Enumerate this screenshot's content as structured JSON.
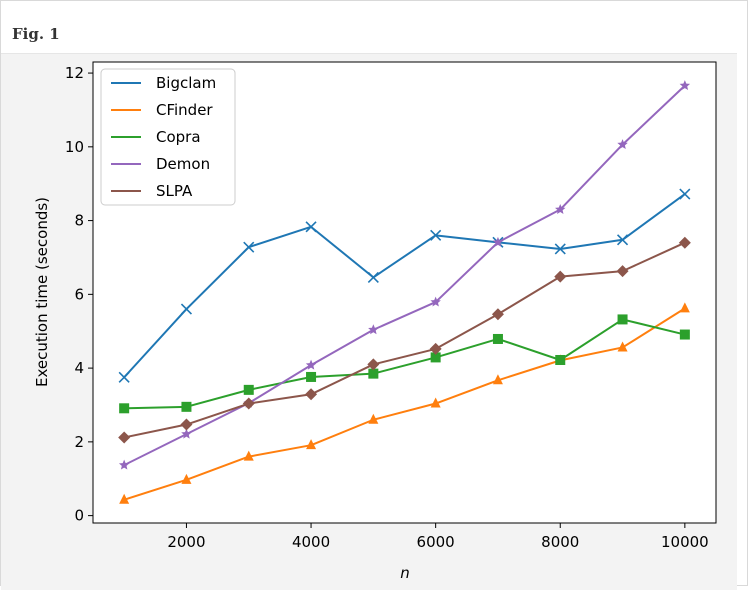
{
  "figure": {
    "label": "Fig. 1"
  },
  "chart_data": {
    "type": "line",
    "title": "",
    "xlabel": "n",
    "ylabel": "Execution time (seconds)",
    "xlim": [
      500,
      10500
    ],
    "ylim": [
      -0.2,
      12.3
    ],
    "x_ticks": [
      2000,
      4000,
      6000,
      8000,
      10000
    ],
    "y_ticks": [
      0,
      2,
      4,
      6,
      8,
      10,
      12
    ],
    "grid": false,
    "legend_position": "upper-left",
    "x": [
      1000,
      2000,
      3000,
      4000,
      5000,
      6000,
      7000,
      8000,
      9000,
      10000
    ],
    "series": [
      {
        "name": "Bigclam",
        "color": "#1f77b4",
        "marker": "x",
        "values": [
          3.75,
          5.6,
          7.28,
          7.83,
          6.46,
          7.6,
          7.41,
          7.23,
          7.48,
          8.72
        ]
      },
      {
        "name": "CFinder",
        "color": "#ff7f0e",
        "marker": "triangle-up",
        "values": [
          0.43,
          0.97,
          1.6,
          1.91,
          2.6,
          3.04,
          3.67,
          4.21,
          4.56,
          5.62
        ]
      },
      {
        "name": "Copra",
        "color": "#2ca02c",
        "marker": "square",
        "values": [
          2.91,
          2.95,
          3.41,
          3.76,
          3.85,
          4.29,
          4.79,
          4.22,
          5.32,
          4.91
        ]
      },
      {
        "name": "Demon",
        "color": "#9467bd",
        "marker": "star",
        "values": [
          1.37,
          2.21,
          3.05,
          4.08,
          5.04,
          5.79,
          7.41,
          8.3,
          10.06,
          11.66
        ]
      },
      {
        "name": "SLPA",
        "color": "#8c564b",
        "marker": "diamond",
        "values": [
          2.12,
          2.47,
          3.04,
          3.29,
          4.1,
          4.52,
          5.46,
          6.48,
          6.63,
          7.4
        ]
      }
    ]
  }
}
